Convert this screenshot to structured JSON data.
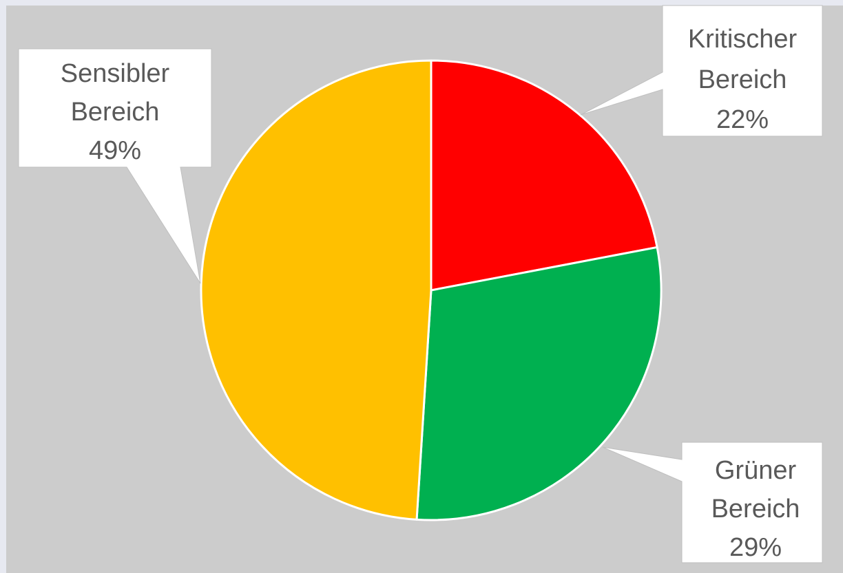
{
  "chart_data": {
    "type": "pie",
    "start_angle_deg": 0,
    "direction": "clockwise",
    "slices": [
      {
        "label_line1": "Kritischer",
        "label_line2": "Bereich",
        "percent_label": "22%",
        "value": 22,
        "color": "#ff0000"
      },
      {
        "label_line1": "Grüner",
        "label_line2": "Bereich",
        "percent_label": "29%",
        "value": 29,
        "color": "#00b050"
      },
      {
        "label_line1": "Sensibler",
        "label_line2": "Bereich",
        "percent_label": "49%",
        "value": 49,
        "color": "#ffc000"
      }
    ]
  },
  "colors": {
    "background": "#cccccc",
    "page": "#e7e9f1",
    "label_text": "#595959",
    "callout_fill": "#ffffff",
    "slice_border": "#ffffff"
  }
}
